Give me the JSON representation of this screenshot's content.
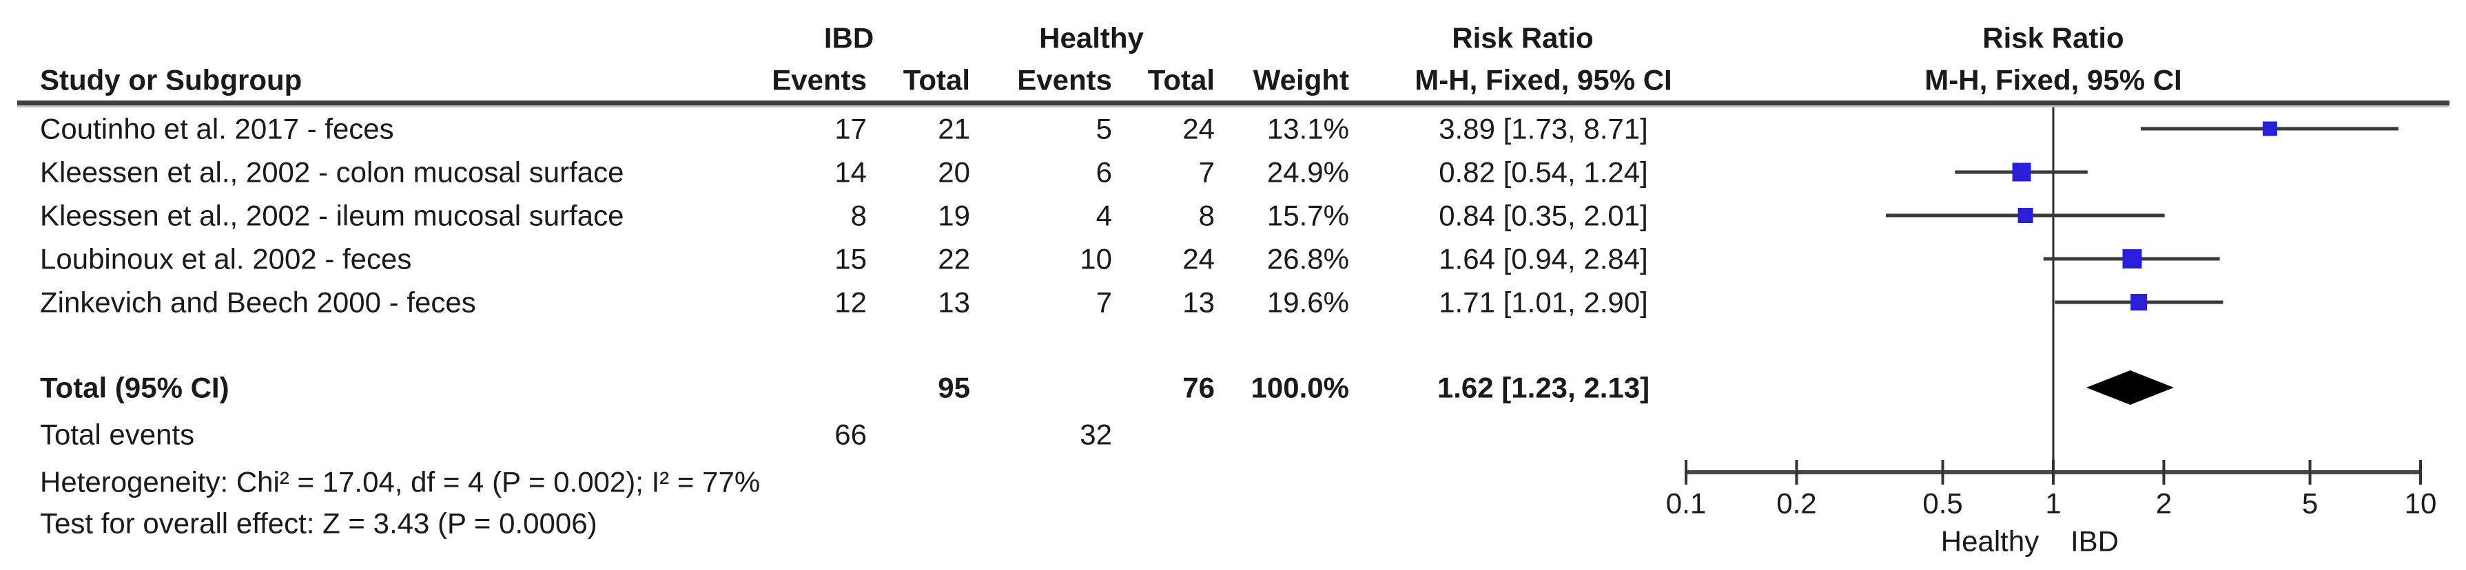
{
  "chart_data": {
    "type": "forest",
    "measure_label": "Risk Ratio",
    "method_label": "M-H, Fixed, 95% CI",
    "group1": "IBD",
    "group2": "Healthy",
    "headers": {
      "study": "Study or Subgroup",
      "events": "Events",
      "total": "Total",
      "weight": "Weight"
    },
    "studies": [
      {
        "label": "Coutinho et al. 2017 - feces",
        "e1": 17,
        "t1": 21,
        "e2": 5,
        "t2": 24,
        "weight": "13.1%",
        "weight_val": 13.1,
        "rr": 3.89,
        "lo": 1.73,
        "hi": 8.71,
        "ci_text": "3.89 [1.73, 8.71]"
      },
      {
        "label": "Kleessen et al., 2002 - colon mucosal surface",
        "e1": 14,
        "t1": 20,
        "e2": 6,
        "t2": 7,
        "weight": "24.9%",
        "weight_val": 24.9,
        "rr": 0.82,
        "lo": 0.54,
        "hi": 1.24,
        "ci_text": "0.82 [0.54, 1.24]"
      },
      {
        "label": "Kleessen et al., 2002 - ileum mucosal surface",
        "e1": 8,
        "t1": 19,
        "e2": 4,
        "t2": 8,
        "weight": "15.7%",
        "weight_val": 15.7,
        "rr": 0.84,
        "lo": 0.35,
        "hi": 2.01,
        "ci_text": "0.84 [0.35, 2.01]"
      },
      {
        "label": "Loubinoux et al. 2002 - feces",
        "e1": 15,
        "t1": 22,
        "e2": 10,
        "t2": 24,
        "weight": "26.8%",
        "weight_val": 26.8,
        "rr": 1.64,
        "lo": 0.94,
        "hi": 2.84,
        "ci_text": "1.64 [0.94, 2.84]"
      },
      {
        "label": "Zinkevich and Beech 2000 - feces",
        "e1": 12,
        "t1": 13,
        "e2": 7,
        "t2": 13,
        "weight": "19.6%",
        "weight_val": 19.6,
        "rr": 1.71,
        "lo": 1.01,
        "hi": 2.9,
        "ci_text": "1.71 [1.01, 2.90]"
      }
    ],
    "total": {
      "label": "Total (95% CI)",
      "t1": 95,
      "t2": 76,
      "weight": "100.0%",
      "rr": 1.62,
      "lo": 1.23,
      "hi": 2.13,
      "ci_text": "1.62 [1.23, 2.13]"
    },
    "total_events": {
      "label": "Total events",
      "e1": 66,
      "e2": 32
    },
    "heterogeneity": "Heterogeneity: Chi² = 17.04, df = 4 (P = 0.002); I² = 77%",
    "overall_effect": "Test for overall effect: Z = 3.43 (P = 0.0006)",
    "axis": {
      "scale": "log",
      "min": 0.1,
      "max": 10,
      "ticks": [
        0.1,
        0.2,
        0.5,
        1,
        2,
        5,
        10
      ],
      "left_label": "Healthy",
      "right_label": "IBD"
    },
    "colors": {
      "marker": "#2a1fd8",
      "diamond": "#000000",
      "ci_line": "#3a3a3a",
      "axis": "#474747"
    }
  }
}
